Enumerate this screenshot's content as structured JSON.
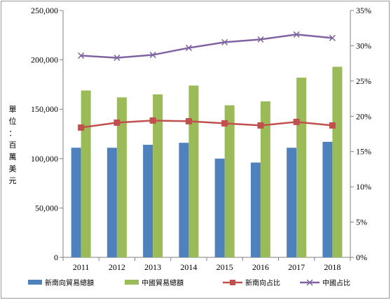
{
  "chart_data": {
    "type": "bar",
    "ylabel": "單位：百萬美元",
    "categories": [
      "2011",
      "2012",
      "2013",
      "2014",
      "2015",
      "2016",
      "2017",
      "2018"
    ],
    "series": [
      {
        "name": "新南向貿易總額",
        "type": "bar",
        "axis": "left",
        "color": "#4F81BD",
        "values": [
          111000,
          111000,
          114000,
          116000,
          100000,
          96000,
          111000,
          117000
        ]
      },
      {
        "name": "中國貿易總額",
        "type": "bar",
        "axis": "left",
        "color": "#9BBB59",
        "values": [
          169000,
          162000,
          165000,
          174000,
          154000,
          158000,
          182000,
          193000
        ]
      },
      {
        "name": "新南向占比",
        "type": "line",
        "axis": "right",
        "color": "#C0504D",
        "marker": "square",
        "values": [
          0.184,
          0.191,
          0.194,
          0.193,
          0.19,
          0.187,
          0.192,
          0.187
        ]
      },
      {
        "name": "中國占比",
        "type": "line",
        "axis": "right",
        "color": "#8064A2",
        "marker": "x",
        "values": [
          0.286,
          0.283,
          0.287,
          0.297,
          0.305,
          0.309,
          0.316,
          0.311
        ]
      }
    ],
    "y_left": {
      "min": 0,
      "max": 250000,
      "ticks": [
        0,
        50000,
        100000,
        150000,
        200000,
        250000
      ],
      "tick_labels": [
        "0",
        "50,000",
        "100,000",
        "150,000",
        "200,000",
        "250,000"
      ]
    },
    "y_right": {
      "min": 0,
      "max": 0.35,
      "ticks": [
        0,
        0.05,
        0.1,
        0.15,
        0.2,
        0.25,
        0.3,
        0.35
      ],
      "tick_labels": [
        "0%",
        "5%",
        "10%",
        "15%",
        "20%",
        "25%",
        "30%",
        "35%"
      ]
    },
    "legend_position": "bottom",
    "grid": false
  }
}
